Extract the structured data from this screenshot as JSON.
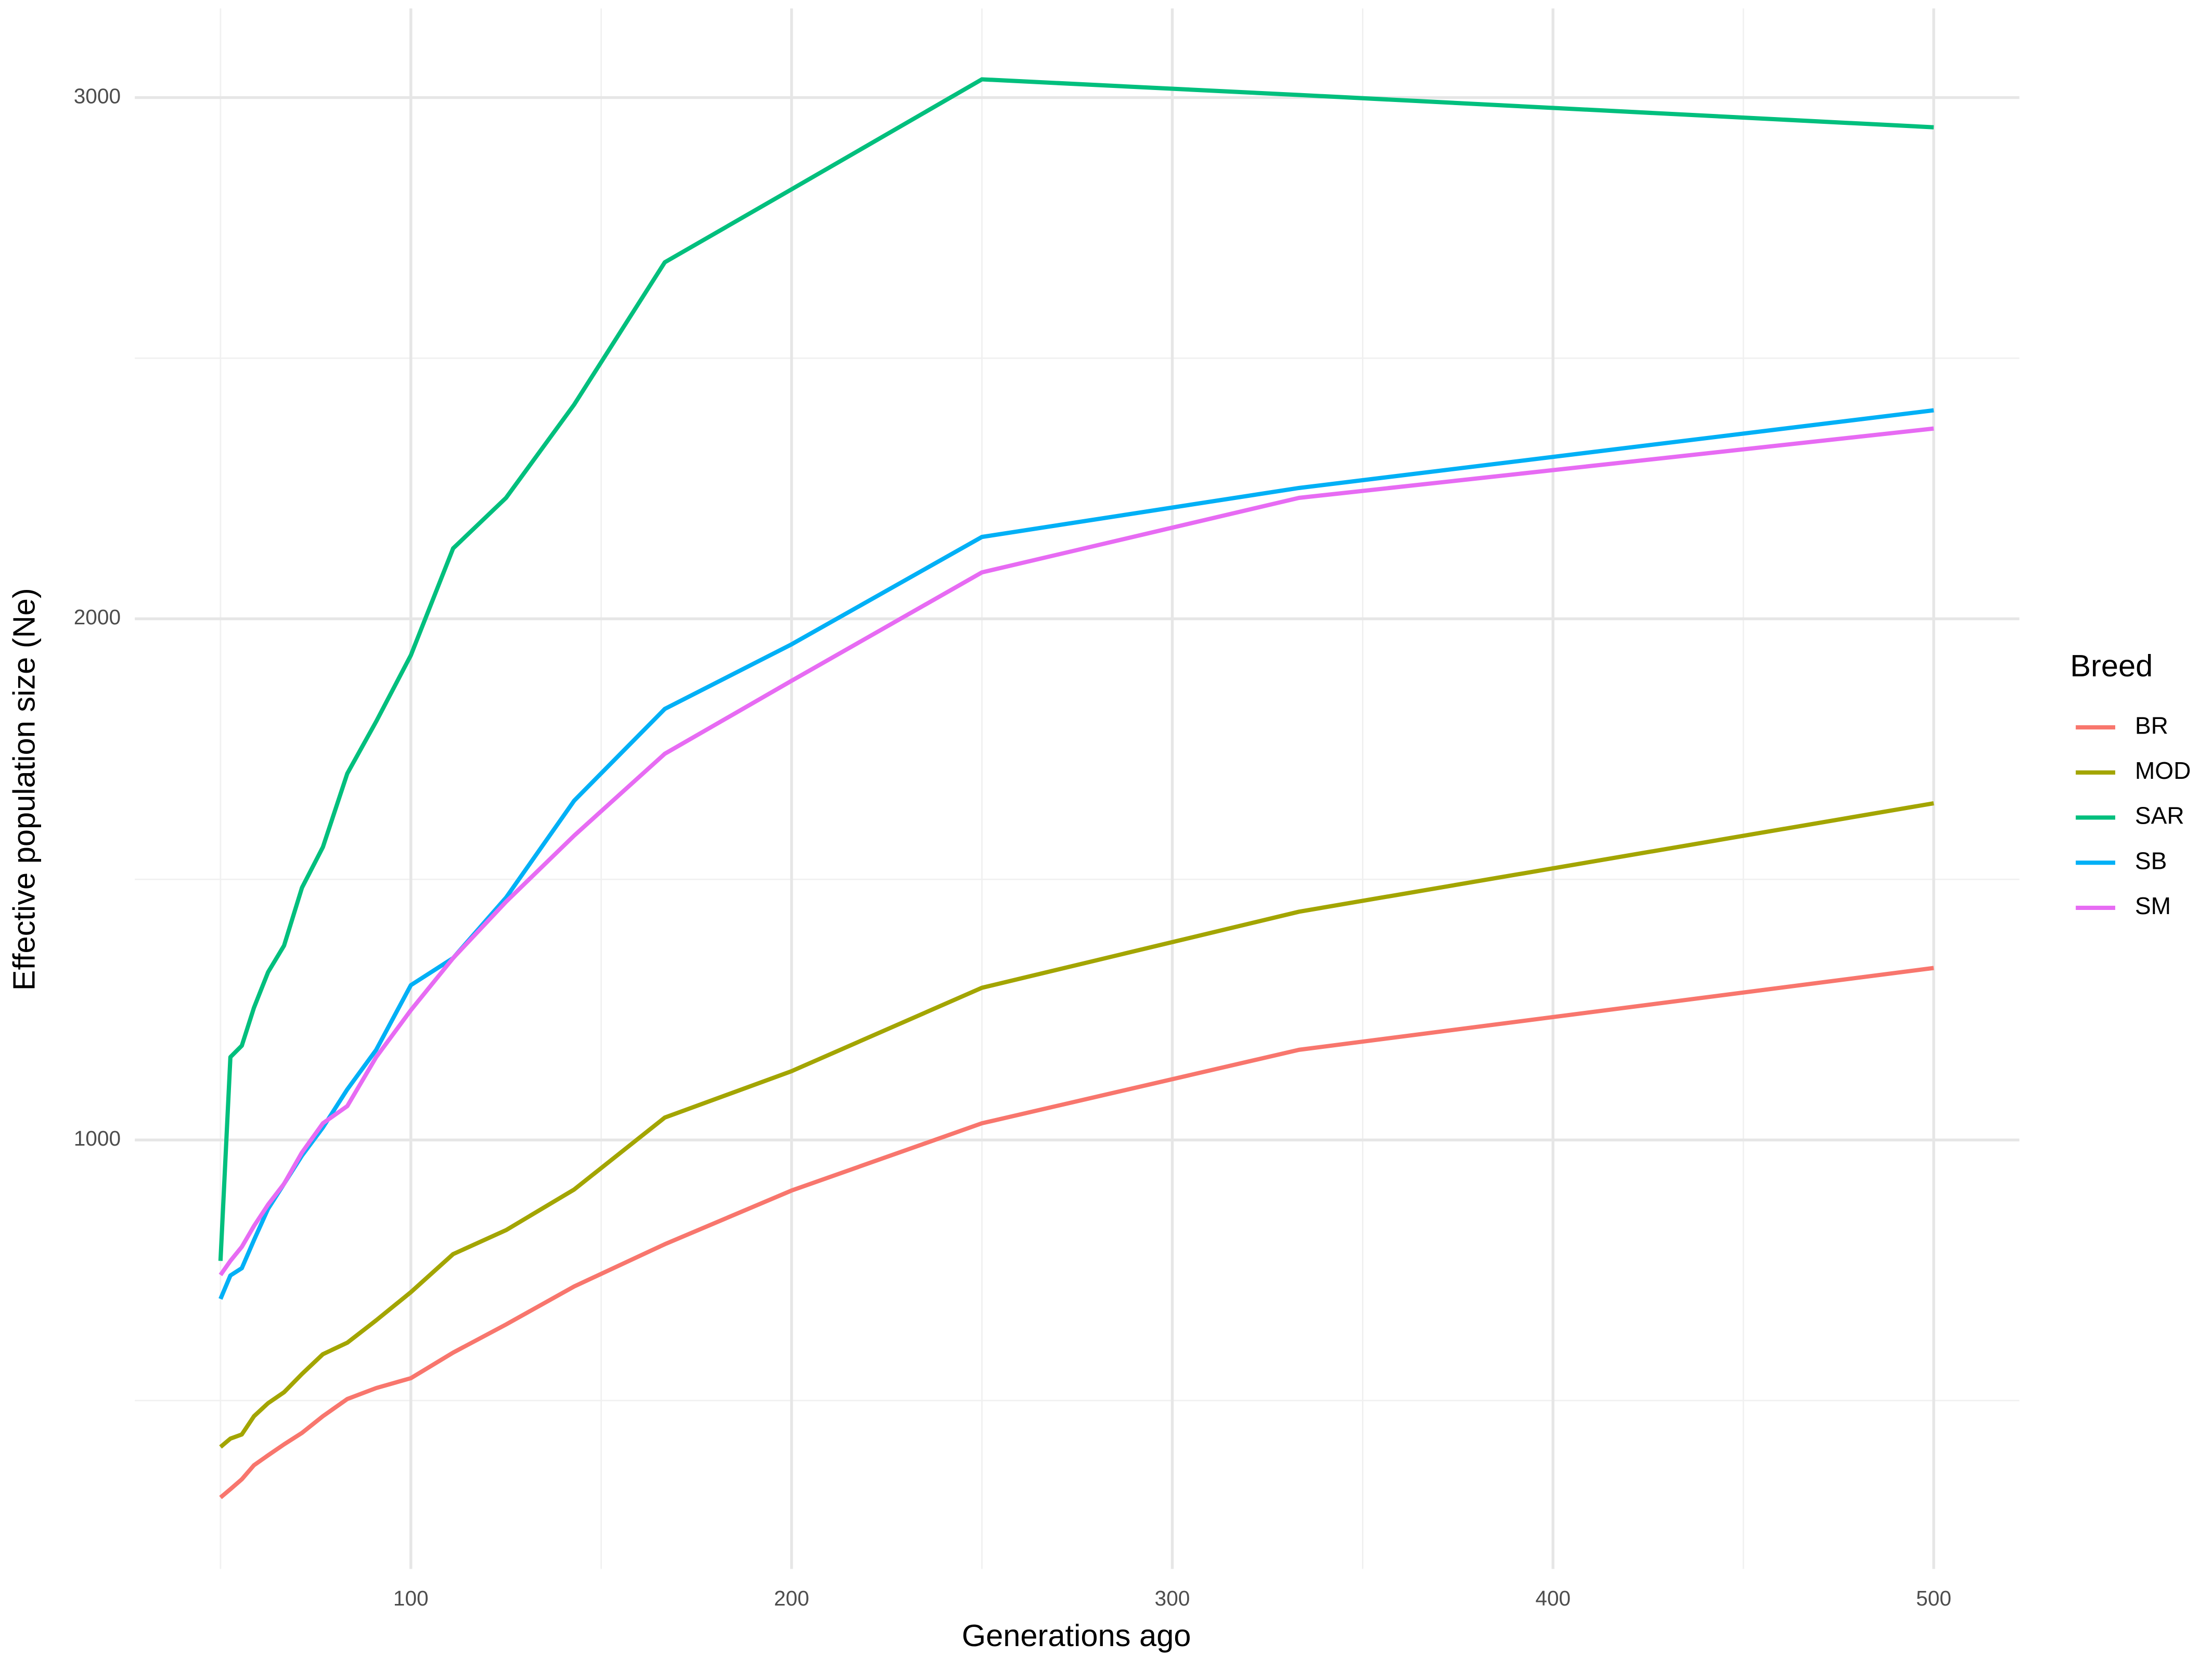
{
  "chart_data": {
    "type": "line",
    "xlabel": "Generations ago",
    "ylabel": "Effective population size (Ne)",
    "legend_title": "Breed",
    "legend": "right",
    "x": [
      50,
      52.6,
      55.6,
      58.8,
      62.5,
      66.7,
      71.4,
      76.9,
      83.3,
      90.9,
      100,
      111.1,
      125,
      142.9,
      166.7,
      200,
      250,
      333.3,
      500
    ],
    "series": [
      {
        "name": "BR",
        "color": "#F8766D",
        "values": [
          314,
          330,
          349,
          376,
          395,
          416,
          438,
          470,
          503,
          524,
          543,
          592,
          646,
          719,
          800,
          903,
          1032,
          1173,
          1330
        ]
      },
      {
        "name": "MOD",
        "color": "#A3A500",
        "values": [
          411,
          427,
          435,
          470,
          495,
          516,
          551,
          589,
          611,
          654,
          708,
          781,
          827,
          905,
          1043,
          1132,
          1292,
          1438,
          1646
        ]
      },
      {
        "name": "SAR",
        "color": "#00BF7D",
        "values": [
          768,
          1159,
          1181,
          1254,
          1322,
          1373,
          1484,
          1562,
          1703,
          1803,
          1930,
          2135,
          2232,
          2411,
          2684,
          2824,
          3035,
          3005,
          2943
        ]
      },
      {
        "name": "SB",
        "color": "#00B0F6",
        "values": [
          695,
          740,
          754,
          808,
          868,
          916,
          970,
          1024,
          1097,
          1173,
          1297,
          1349,
          1465,
          1651,
          1827,
          1951,
          2157,
          2251,
          2400
        ]
      },
      {
        "name": "SM",
        "color": "#E76BF3",
        "values": [
          741,
          768,
          795,
          835,
          876,
          916,
          976,
          1032,
          1065,
          1159,
          1249,
          1349,
          1457,
          1584,
          1741,
          1881,
          2089,
          2232,
          2365
        ]
      }
    ],
    "xlim": [
      27.5,
      522.5
    ],
    "xticks": [
      100,
      200,
      300,
      400,
      500
    ],
    "xminor": [
      50,
      150,
      250,
      350,
      450
    ],
    "ylim": [
      177,
      3171
    ],
    "yticks": [
      1000,
      2000,
      3000
    ],
    "yminor": [
      500,
      1500,
      2500
    ],
    "grid": true
  }
}
